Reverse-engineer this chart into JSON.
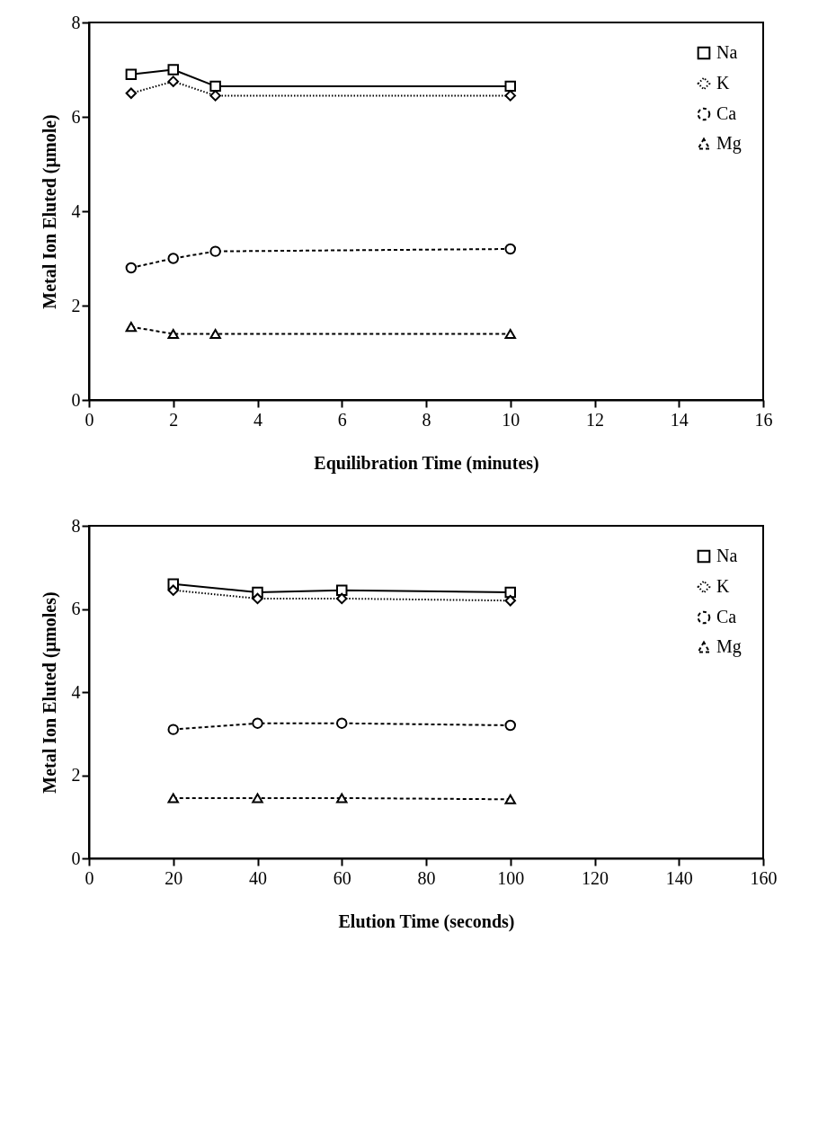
{
  "chart_data": [
    {
      "type": "line",
      "xlabel": "Equilibration Time (minutes)",
      "ylabel": "Metal Ion Eluted (µmole)",
      "x": [
        1,
        2,
        3,
        10
      ],
      "xlim": [
        0,
        16
      ],
      "xticks": [
        0,
        2,
        4,
        6,
        8,
        10,
        12,
        14,
        16
      ],
      "ylim": [
        0,
        8
      ],
      "yticks": [
        0,
        2,
        4,
        6,
        8
      ],
      "grid": false,
      "legend": "right",
      "series": [
        {
          "name": "Na",
          "color": "#000000",
          "marker": "square",
          "line_style": "solid",
          "values": [
            6.9,
            7.0,
            6.65,
            6.65
          ]
        },
        {
          "name": "K",
          "color": "#000000",
          "marker": "diamond",
          "line_style": "dotted",
          "values": [
            6.5,
            6.75,
            6.45,
            6.45
          ]
        },
        {
          "name": "Ca",
          "color": "#000000",
          "marker": "circle",
          "line_style": "dashed",
          "values": [
            2.8,
            3.0,
            3.15,
            3.2
          ]
        },
        {
          "name": "Mg",
          "color": "#000000",
          "marker": "triangle",
          "line_style": "dashed",
          "values": [
            1.55,
            1.4,
            1.4,
            1.4
          ]
        }
      ]
    },
    {
      "type": "line",
      "xlabel": "Elution Time (seconds)",
      "ylabel": "Metal Ion Eluted (µmoles)",
      "x": [
        20,
        40,
        60,
        100
      ],
      "xlim": [
        0,
        160
      ],
      "xticks": [
        0,
        20,
        40,
        60,
        80,
        100,
        120,
        140,
        160
      ],
      "ylim": [
        0,
        8
      ],
      "yticks": [
        0,
        2,
        4,
        6,
        8
      ],
      "grid": false,
      "legend": "right",
      "series": [
        {
          "name": "Na",
          "color": "#000000",
          "marker": "square",
          "line_style": "solid",
          "values": [
            6.6,
            6.4,
            6.45,
            6.4
          ]
        },
        {
          "name": "K",
          "color": "#000000",
          "marker": "diamond",
          "line_style": "dotted",
          "values": [
            6.45,
            6.25,
            6.25,
            6.2
          ]
        },
        {
          "name": "Ca",
          "color": "#000000",
          "marker": "circle",
          "line_style": "dashed",
          "values": [
            3.1,
            3.25,
            3.25,
            3.2
          ]
        },
        {
          "name": "Mg",
          "color": "#000000",
          "marker": "triangle",
          "line_style": "dashed",
          "values": [
            1.45,
            1.45,
            1.45,
            1.42
          ]
        }
      ]
    }
  ]
}
